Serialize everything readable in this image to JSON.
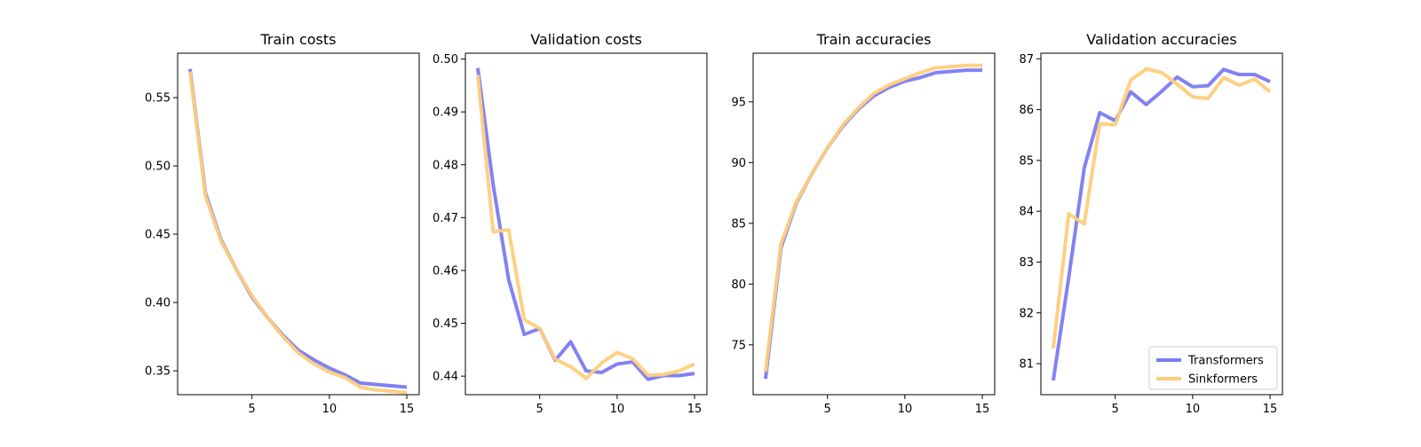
{
  "chart_data": [
    {
      "type": "line",
      "title": "Train costs",
      "xlabel": "",
      "ylabel": "",
      "xlim": [
        0.2,
        15.8
      ],
      "ylim": [
        0.3325,
        0.5825
      ],
      "xticks": [
        5,
        10,
        15
      ],
      "yticks": [
        0.35,
        0.4,
        0.45,
        0.5,
        0.55
      ],
      "ytick_labels": [
        "0.35",
        "0.40",
        "0.45",
        "0.50",
        "0.55"
      ],
      "x": [
        1,
        2,
        3,
        4,
        5,
        6,
        7,
        8,
        9,
        10,
        11,
        12,
        13,
        14,
        15
      ],
      "series": [
        {
          "name": "Transformers",
          "color": "#7b7bf2",
          "values": [
            0.571,
            0.48,
            0.446,
            0.424,
            0.404,
            0.389,
            0.376,
            0.365,
            0.358,
            0.352,
            0.347,
            0.341,
            0.34,
            0.339,
            0.338
          ]
        },
        {
          "name": "Sinkformers",
          "color": "#fecd7c",
          "values": [
            0.569,
            0.478,
            0.445,
            0.424,
            0.405,
            0.389,
            0.375,
            0.363,
            0.355,
            0.349,
            0.345,
            0.338,
            0.336,
            0.335,
            0.334
          ]
        }
      ]
    },
    {
      "type": "line",
      "title": "Validation costs",
      "xlabel": "",
      "ylabel": "",
      "xlim": [
        0.2,
        15.8
      ],
      "ylim": [
        0.4365,
        0.5011
      ],
      "xticks": [
        5,
        10,
        15
      ],
      "yticks": [
        0.44,
        0.45,
        0.46,
        0.47,
        0.48,
        0.49,
        0.5
      ],
      "ytick_labels": [
        "0.44",
        "0.45",
        "0.46",
        "0.47",
        "0.48",
        "0.49",
        "0.50"
      ],
      "x": [
        1,
        2,
        3,
        4,
        5,
        6,
        7,
        8,
        9,
        10,
        11,
        12,
        13,
        14,
        15
      ],
      "series": [
        {
          "name": "Transformers",
          "color": "#7b7bf2",
          "values": [
            0.4983,
            0.4761,
            0.4582,
            0.4479,
            0.449,
            0.443,
            0.4465,
            0.441,
            0.4407,
            0.4423,
            0.4427,
            0.4394,
            0.4401,
            0.4401,
            0.4405
          ]
        },
        {
          "name": "Sinkformers",
          "color": "#fecd7c",
          "values": [
            0.497,
            0.4673,
            0.4677,
            0.4507,
            0.449,
            0.4432,
            0.4418,
            0.4396,
            0.4425,
            0.4445,
            0.4433,
            0.4402,
            0.4403,
            0.441,
            0.4423
          ]
        }
      ]
    },
    {
      "type": "line",
      "title": "Train accuracies",
      "xlabel": "",
      "ylabel": "",
      "xlim": [
        0.2,
        15.8
      ],
      "ylim": [
        70.9,
        99.0
      ],
      "xticks": [
        5,
        10,
        15
      ],
      "yticks": [
        75,
        80,
        85,
        90,
        95
      ],
      "ytick_labels": [
        "75",
        "80",
        "85",
        "90",
        "95"
      ],
      "x": [
        1,
        2,
        3,
        4,
        5,
        6,
        7,
        8,
        9,
        10,
        11,
        12,
        13,
        14,
        15
      ],
      "series": [
        {
          "name": "Transformers",
          "color": "#7b7bf2",
          "values": [
            72.2,
            83.0,
            86.7,
            89.1,
            91.2,
            93.0,
            94.4,
            95.5,
            96.2,
            96.7,
            97.0,
            97.4,
            97.5,
            97.6,
            97.6
          ]
        },
        {
          "name": "Sinkformers",
          "color": "#fecd7c",
          "values": [
            72.8,
            83.3,
            86.8,
            89.1,
            91.2,
            93.1,
            94.5,
            95.7,
            96.4,
            96.9,
            97.4,
            97.8,
            97.9,
            98.0,
            98.0
          ]
        }
      ]
    },
    {
      "type": "line",
      "title": "Validation accuracies",
      "xlabel": "",
      "ylabel": "",
      "xlim": [
        0.2,
        15.8
      ],
      "ylim": [
        80.39,
        87.11
      ],
      "xticks": [
        5,
        10,
        15
      ],
      "yticks": [
        81,
        82,
        83,
        84,
        85,
        86,
        87
      ],
      "ytick_labels": [
        "81",
        "82",
        "83",
        "84",
        "85",
        "86",
        "87"
      ],
      "x": [
        1,
        2,
        3,
        4,
        5,
        6,
        7,
        8,
        9,
        10,
        11,
        12,
        13,
        14,
        15
      ],
      "legend": "bottom-right",
      "series": [
        {
          "name": "Transformers",
          "color": "#7b7bf2",
          "values": [
            80.67,
            82.7,
            84.85,
            85.94,
            85.78,
            86.35,
            86.1,
            86.36,
            86.64,
            86.45,
            86.47,
            86.79,
            86.69,
            86.69,
            86.55
          ]
        },
        {
          "name": "Sinkformers",
          "color": "#fecd7c",
          "values": [
            81.3,
            83.95,
            83.75,
            85.72,
            85.7,
            86.58,
            86.8,
            86.73,
            86.5,
            86.25,
            86.22,
            86.63,
            86.48,
            86.6,
            86.35
          ]
        }
      ]
    }
  ]
}
